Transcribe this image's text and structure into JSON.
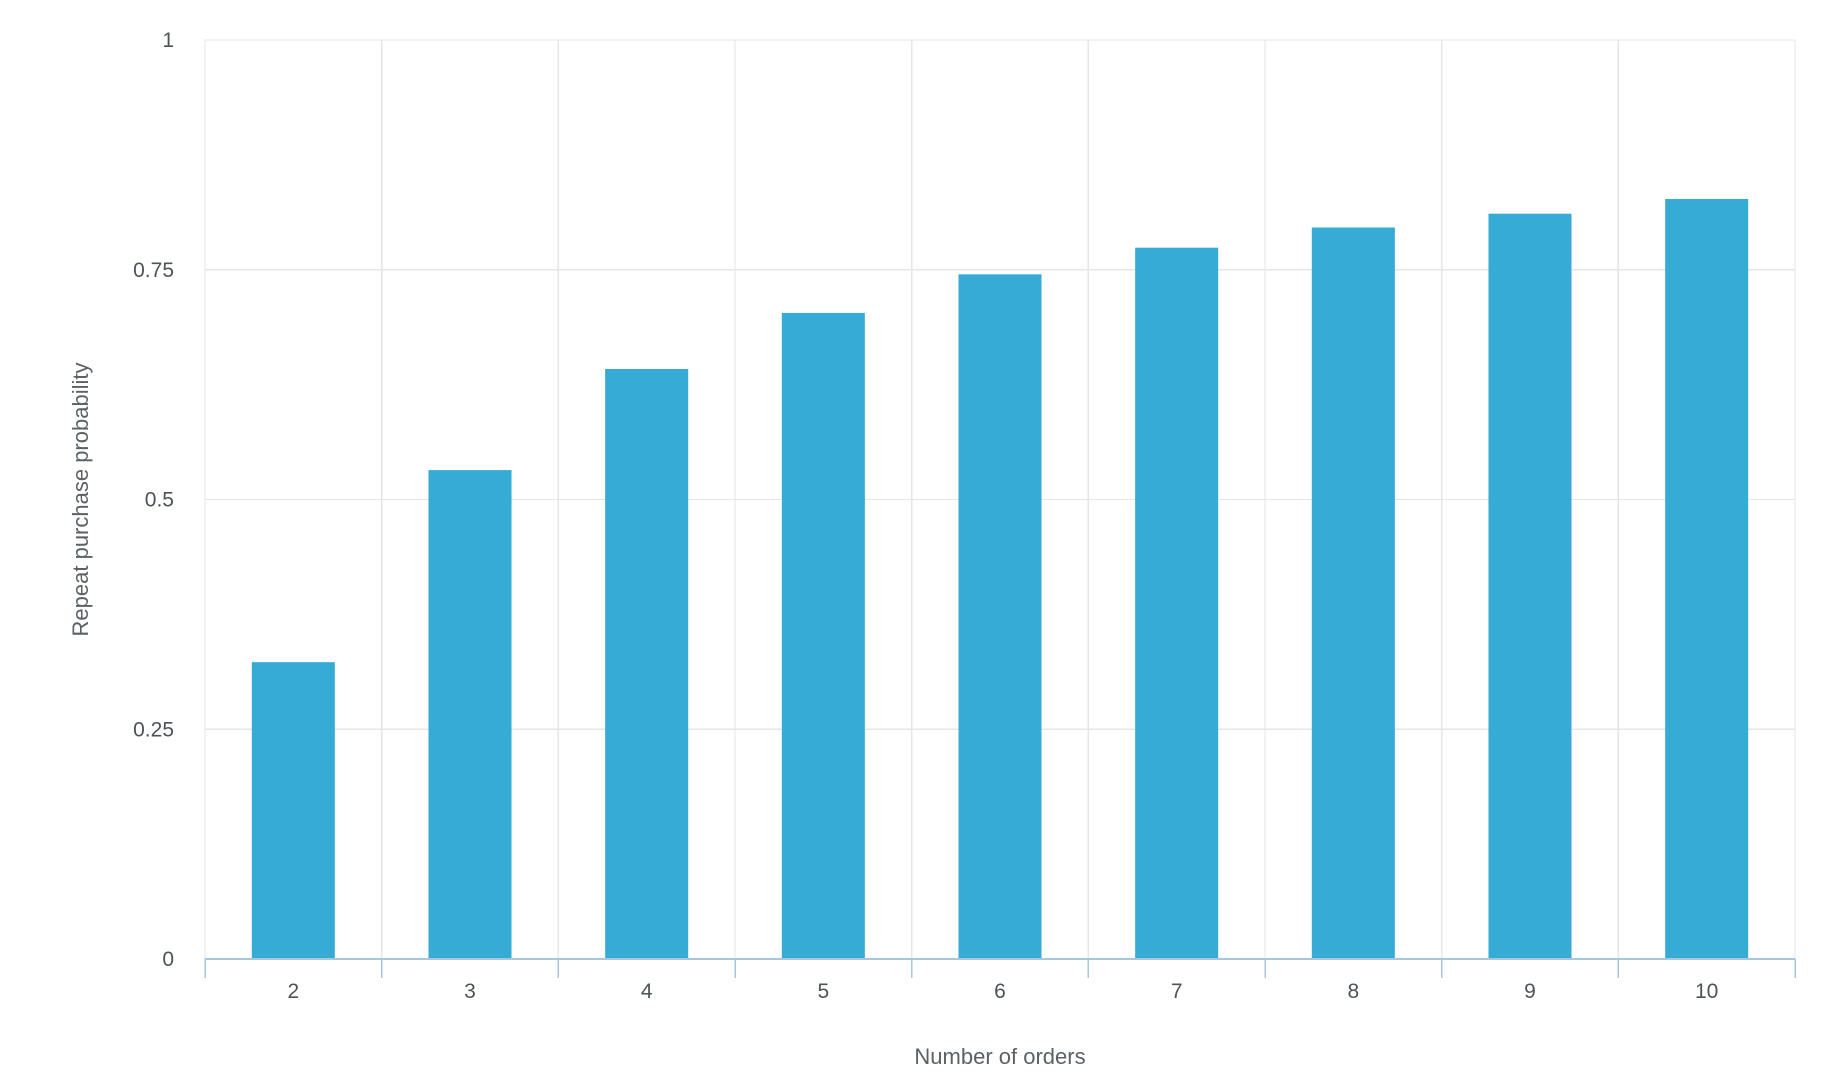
{
  "chart_data": {
    "type": "bar",
    "title": "",
    "xlabel": "Number of orders",
    "ylabel": "Repeat purchase probability",
    "categories": [
      "2",
      "3",
      "4",
      "5",
      "6",
      "7",
      "8",
      "9",
      "10"
    ],
    "values": [
      0.323,
      0.532,
      0.642,
      0.703,
      0.745,
      0.774,
      0.796,
      0.811,
      0.827
    ],
    "ylim": [
      0,
      1
    ],
    "yticks": [
      {
        "value": 0,
        "label": "0"
      },
      {
        "value": 0.25,
        "label": "0.25"
      },
      {
        "value": 0.5,
        "label": "0.5"
      },
      {
        "value": 0.75,
        "label": "0.75"
      },
      {
        "value": 1,
        "label": "1"
      }
    ],
    "grid": true,
    "legend": "none",
    "colors": {
      "bar": "#35abd5"
    }
  }
}
